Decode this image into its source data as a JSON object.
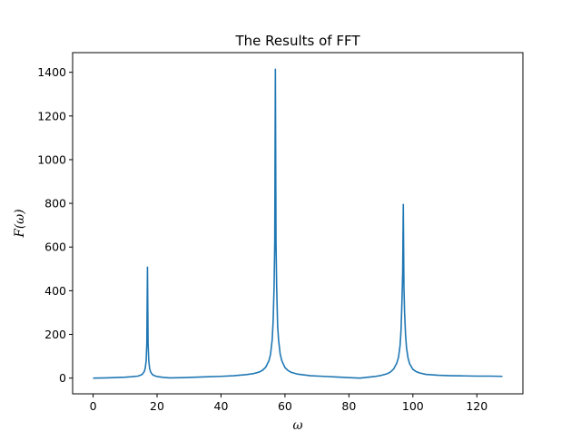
{
  "chart_data": {
    "type": "line",
    "title": "The Results of FFT",
    "xlabel": "ω",
    "ylabel": "F(ω)",
    "xlim": [
      -6.4,
      134.4
    ],
    "ylim": [
      -72,
      1490
    ],
    "xticks": [
      0,
      20,
      40,
      60,
      80,
      100,
      120
    ],
    "yticks": [
      0,
      200,
      400,
      600,
      800,
      1000,
      1200,
      1400
    ],
    "grid": false,
    "line_color": "#1f77b4",
    "series": [
      {
        "x": [
          0,
          4,
          8,
          10,
          12,
          14,
          15,
          15.5,
          16,
          16.3,
          16.6,
          16.8,
          17,
          17.2,
          17.4,
          17.7,
          18,
          18.5,
          19,
          20,
          22,
          24,
          28,
          32,
          36,
          40,
          44,
          48,
          50,
          52,
          53,
          54,
          55,
          55.5,
          56,
          56.3,
          56.6,
          56.8,
          57,
          57.2,
          57.4,
          57.7,
          58,
          58.5,
          59,
          60,
          61,
          62,
          64,
          68,
          72,
          76,
          80,
          83.5,
          86,
          88,
          90,
          92,
          93,
          94,
          95,
          95.5,
          96,
          96.3,
          96.6,
          96.8,
          97,
          97.2,
          97.4,
          97.7,
          98,
          98.5,
          99,
          100,
          101,
          102,
          104,
          108,
          112,
          116,
          120,
          124,
          128
        ],
        "values": [
          0,
          1,
          3,
          4,
          6,
          9,
          14,
          19,
          30,
          45,
          80,
          160,
          508,
          160,
          80,
          42,
          28,
          17,
          12,
          7,
          3,
          1,
          2,
          4,
          6,
          8,
          11,
          16,
          20,
          28,
          36,
          50,
          80,
          110,
          175,
          260,
          420,
          620,
          1414,
          620,
          420,
          240,
          175,
          110,
          80,
          48,
          34,
          26,
          18,
          11,
          8,
          5,
          2,
          0,
          4,
          7,
          12,
          20,
          28,
          42,
          70,
          95,
          150,
          220,
          360,
          480,
          795,
          420,
          300,
          200,
          140,
          90,
          65,
          40,
          30,
          24,
          17,
          13,
          11,
          10,
          9,
          9,
          8
        ]
      }
    ]
  }
}
